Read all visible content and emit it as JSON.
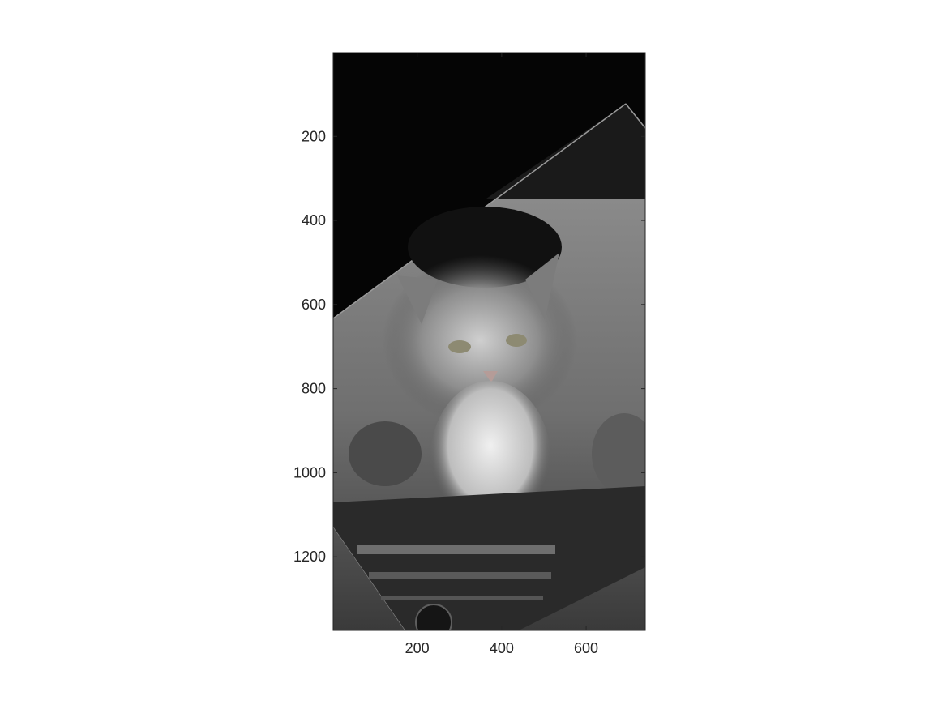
{
  "figure": {
    "background": "#ffffff",
    "axes_color": "#262626",
    "image_description_colors": {
      "dark": "#000000",
      "mid_gray": "#7a7a7a",
      "light_gray": "#bdbdbd",
      "fur_highlight": "#e6e6e6"
    }
  },
  "axes": {
    "xlim": [
      1,
      740
    ],
    "ylim": [
      1,
      1375
    ],
    "y_reversed": true,
    "xticks": [
      {
        "value": 200,
        "label": "200"
      },
      {
        "value": 400,
        "label": "400"
      },
      {
        "value": 600,
        "label": "600"
      }
    ],
    "yticks": [
      {
        "value": 200,
        "label": "200"
      },
      {
        "value": 400,
        "label": "400"
      },
      {
        "value": 600,
        "label": "600"
      },
      {
        "value": 800,
        "label": "800"
      },
      {
        "value": 1000,
        "label": "1000"
      },
      {
        "value": 1200,
        "label": "1200"
      }
    ]
  }
}
